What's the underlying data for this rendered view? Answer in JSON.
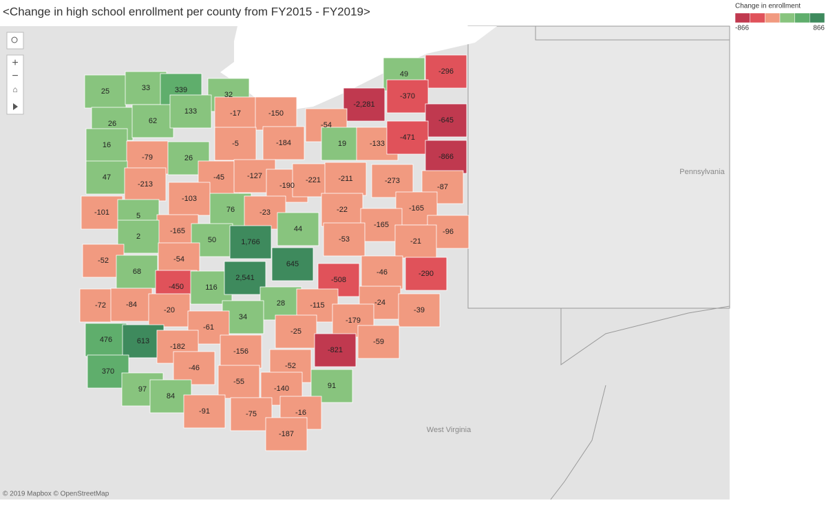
{
  "chart_data": {
    "type": "choropleth",
    "title": "<Change in high school enrollment per county from FY2015 - FY2019>",
    "legend": {
      "title": "Change in enrollment",
      "range": [
        -866,
        866
      ],
      "colors": [
        "#c0394f",
        "#e0525a",
        "#f19a80",
        "#88c47e",
        "#5fae6c",
        "#3e8a5d"
      ]
    },
    "values": [
      25,
      33,
      339,
      32,
      49,
      -296,
      -17,
      -150,
      -2281,
      -370,
      26,
      62,
      133,
      -54,
      -645,
      16,
      -5,
      -184,
      19,
      -133,
      -471,
      -79,
      26,
      -866,
      47,
      -213,
      -45,
      -127,
      -190,
      -221,
      -211,
      -273,
      -87,
      -103,
      -101,
      5,
      76,
      -23,
      -22,
      -165,
      -165,
      44,
      -165,
      -96,
      2,
      50,
      1766,
      -53,
      -21,
      -52,
      -54,
      645,
      68,
      -46,
      -290,
      -450,
      116,
      2541,
      -508,
      -72,
      -84,
      28,
      -115,
      -24,
      -20,
      -39,
      34,
      -61,
      -179,
      476,
      613,
      -182,
      -25,
      -59,
      -156,
      -821,
      -46,
      -52,
      370,
      -55,
      91,
      -140,
      97,
      84,
      -91,
      -75,
      -16,
      -187
    ],
    "value_labels": [
      "25",
      "33",
      "339",
      "32",
      "49",
      "-296",
      "-17",
      "-150",
      "-2,281",
      "-370",
      "26",
      "62",
      "133",
      "-54",
      "-645",
      "16",
      "-5",
      "-184",
      "19",
      "-133",
      "-471",
      "-79",
      "26",
      "-866",
      "47",
      "-213",
      "-45",
      "-127",
      "-190",
      "-221",
      "-211",
      "-273",
      "-87",
      "-103",
      "-101",
      "5",
      "76",
      "-23",
      "-22",
      "-165",
      "-165",
      "44",
      "-165",
      "-96",
      "2",
      "50",
      "1,766",
      "-53",
      "-21",
      "-52",
      "-54",
      "645",
      "68",
      "-46",
      "-290",
      "-450",
      "116",
      "2,541",
      "-508",
      "-72",
      "-84",
      "28",
      "-115",
      "-24",
      "-20",
      "-39",
      "34",
      "-61",
      "-179",
      "476",
      "613",
      "-182",
      "-25",
      "-59",
      "-156",
      "-821",
      "-46",
      "-52",
      "370",
      "-55",
      "91",
      "-140",
      "97",
      "84",
      "-91",
      "-75",
      "-16",
      "-187"
    ]
  },
  "map": {
    "places": [
      "Pennsylvania",
      "West Virginia"
    ],
    "attribution": "© 2019 Mapbox © OpenStreetMap"
  }
}
